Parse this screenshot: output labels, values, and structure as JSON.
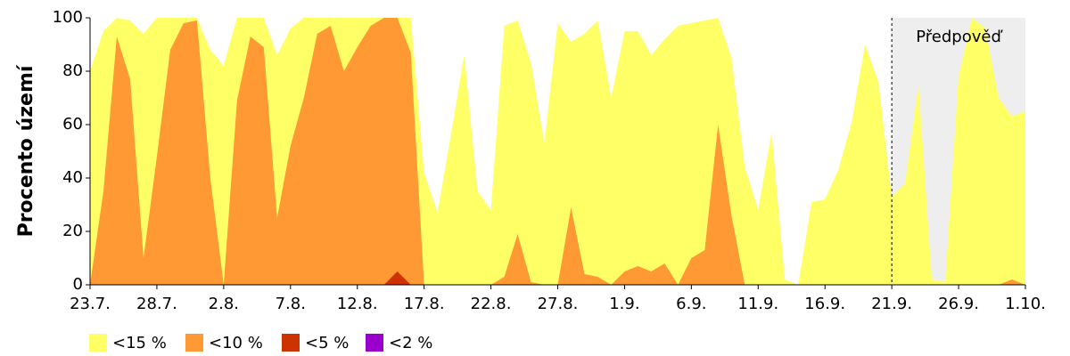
{
  "chart_data": {
    "type": "area",
    "ylabel": "Procento území",
    "categories": [
      "23.7.",
      null,
      null,
      null,
      null,
      "28.7.",
      null,
      null,
      null,
      null,
      "2.8.",
      null,
      null,
      null,
      null,
      "7.8.",
      null,
      null,
      null,
      null,
      "12.8.",
      null,
      null,
      null,
      null,
      "17.8.",
      null,
      null,
      null,
      null,
      "22.8.",
      null,
      null,
      null,
      null,
      "27.8.",
      null,
      null,
      null,
      null,
      "1.9.",
      null,
      null,
      null,
      null,
      "6.9.",
      null,
      null,
      null,
      null,
      "11.9.",
      null,
      null,
      null,
      null,
      "16.9.",
      null,
      null,
      null,
      null,
      "21.9.",
      null,
      null,
      null,
      null,
      "26.9.",
      null,
      null,
      null,
      null,
      "1.10."
    ],
    "series": [
      {
        "name": "<15 %",
        "color": "#ffff66",
        "values": [
          80,
          95,
          100,
          99,
          94,
          100,
          100,
          100,
          100,
          88,
          82,
          100,
          100,
          100,
          86,
          96,
          100,
          100,
          100,
          100,
          100,
          100,
          100,
          100,
          100,
          42,
          27,
          56,
          86,
          35,
          28,
          97,
          99,
          83,
          53,
          98,
          91,
          94,
          99,
          70,
          95,
          95,
          86,
          92,
          97,
          98,
          99,
          100,
          85,
          44,
          28,
          57,
          2,
          0,
          31,
          32,
          43,
          61,
          90,
          76,
          33,
          38,
          75,
          2,
          1,
          78,
          100,
          96,
          70,
          63,
          65
        ]
      },
      {
        "name": "<10 %",
        "color": "#ff9933",
        "values": [
          0,
          35,
          93,
          77,
          10,
          48,
          88,
          98,
          99,
          40,
          0,
          69,
          93,
          89,
          25,
          52,
          70,
          94,
          97,
          80,
          89,
          97,
          100,
          100,
          87,
          0,
          0,
          0,
          0,
          0,
          0,
          3,
          19,
          1,
          0,
          0,
          29,
          4,
          3,
          0,
          5,
          7,
          5,
          8,
          0,
          10,
          13,
          60,
          26,
          0,
          0,
          0,
          0,
          0,
          0,
          0,
          0,
          0,
          0,
          0,
          0,
          0,
          0,
          0,
          0,
          0,
          0,
          0,
          0,
          2,
          0
        ]
      },
      {
        "name": "<5 %",
        "color": "#cc3300",
        "values": [
          0,
          0,
          0,
          0,
          0,
          0,
          0,
          0,
          0,
          0,
          0,
          0,
          0,
          0,
          0,
          0,
          0,
          0,
          0,
          0,
          0,
          0,
          0,
          5,
          0,
          0,
          0,
          0,
          0,
          0,
          0,
          0,
          0,
          0,
          0,
          0,
          0,
          0,
          0,
          0,
          0,
          0,
          0,
          0,
          0,
          0,
          0,
          0,
          0,
          0,
          0,
          0,
          0,
          0,
          0,
          0,
          0,
          0,
          0,
          0,
          0,
          0,
          0,
          0,
          0,
          0,
          0,
          0,
          0,
          0,
          0
        ]
      },
      {
        "name": "<2 %",
        "color": "#9900cc",
        "values": [
          0,
          0,
          0,
          0,
          0,
          0,
          0,
          0,
          0,
          0,
          0,
          0,
          0,
          0,
          0,
          0,
          0,
          0,
          0,
          0,
          0,
          0,
          0,
          0,
          0,
          0,
          0,
          0,
          0,
          0,
          0,
          0,
          0,
          0,
          0,
          0,
          0,
          0,
          0,
          0,
          0,
          0,
          0,
          0,
          0,
          0,
          0,
          0,
          0,
          0,
          0,
          0,
          0,
          0,
          0,
          0,
          0,
          0,
          0,
          0,
          0,
          0,
          0,
          0,
          0,
          0,
          0,
          0,
          0,
          0,
          0
        ]
      }
    ],
    "ylim": [
      0,
      100
    ],
    "yticks": [
      0,
      20,
      40,
      60,
      80,
      100
    ],
    "forecast": {
      "label": "Předpověď",
      "start": "21.9.",
      "color": "#eeeeee"
    },
    "legend": "bottom"
  }
}
